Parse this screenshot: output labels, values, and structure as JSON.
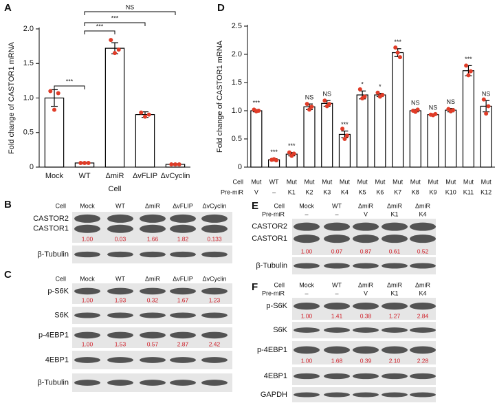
{
  "chart_data": [
    {
      "type": "bar",
      "panel_label": "A",
      "ylabel": "Fold change of CASTOR1 mRNA",
      "xlabel": "Cell",
      "categories": [
        "Mock",
        "WT",
        "ΔmiR",
        "ΔvFLIP",
        "ΔvCyclin"
      ],
      "values": [
        1.0,
        0.06,
        1.72,
        0.76,
        0.04
      ],
      "errors": [
        0.12,
        0.01,
        0.08,
        0.04,
        0.01
      ],
      "points": [
        [
          1.1,
          0.83,
          1.07
        ],
        [
          0.06,
          0.06,
          0.06
        ],
        [
          1.84,
          1.65,
          1.7
        ],
        [
          0.79,
          0.73,
          0.76
        ],
        [
          0.04,
          0.04,
          0.04
        ]
      ],
      "color": "#ffffff",
      "edge_color": "#000000",
      "point_color": "#e03c28",
      "ylim": [
        0,
        2
      ],
      "yticks": [
        0,
        0.5,
        {
          "value": 1,
          "label": "1.0"
        },
        1.5,
        {
          "value": 2,
          "label": "2.0"
        }
      ],
      "comparisons": [
        "***",
        "***",
        "***",
        "NS"
      ]
    },
    {
      "type": "bar",
      "panel_label": "D",
      "ylabel": "Fold change of CASTOR1 mRNA",
      "row_labels": {
        "cell": "Cell",
        "pre_mir": "Pre-miR"
      },
      "categories": [
        {
          "cell": "Mut",
          "pre_mir": "V"
        },
        {
          "cell": "WT",
          "pre_mir": "–"
        },
        {
          "cell": "Mut",
          "pre_mir": "K1"
        },
        {
          "cell": "Mut",
          "pre_mir": "K2"
        },
        {
          "cell": "Mut",
          "pre_mir": "K3"
        },
        {
          "cell": "Mut",
          "pre_mir": "K4"
        },
        {
          "cell": "Mut",
          "pre_mir": "K5"
        },
        {
          "cell": "Mut",
          "pre_mir": "K6"
        },
        {
          "cell": "Mut",
          "pre_mir": "K7"
        },
        {
          "cell": "Mut",
          "pre_mir": "K8"
        },
        {
          "cell": "Mut",
          "pre_mir": "K9"
        },
        {
          "cell": "Mut",
          "pre_mir": "K10"
        },
        {
          "cell": "Mut",
          "pre_mir": "K11"
        },
        {
          "cell": "Mut",
          "pre_mir": "K12"
        }
      ],
      "values": [
        1.0,
        0.13,
        0.23,
        1.07,
        1.13,
        0.58,
        1.28,
        1.28,
        2.03,
        1.0,
        0.93,
        1.01,
        1.71,
        1.08
      ],
      "errors": [
        0.02,
        0.02,
        0.03,
        0.05,
        0.05,
        0.06,
        0.07,
        0.03,
        0.07,
        0.02,
        0.01,
        0.03,
        0.09,
        0.1
      ],
      "points": [
        [
          1.02,
          0.99,
          1.0
        ],
        [
          0.13,
          0.14,
          0.12
        ],
        [
          0.26,
          0.2,
          0.24
        ],
        [
          1.12,
          1.02,
          1.07
        ],
        [
          1.18,
          1.08,
          1.12
        ],
        [
          0.68,
          0.5,
          0.56
        ],
        [
          1.38,
          1.22,
          1.25
        ],
        [
          1.32,
          1.25,
          1.28
        ],
        [
          2.12,
          2.03,
          1.95
        ],
        [
          1.0,
          0.98,
          1.02
        ],
        [
          0.93,
          0.92,
          0.94
        ],
        [
          1.03,
          0.99,
          1.01
        ],
        [
          1.8,
          1.63,
          1.7
        ],
        [
          1.2,
          0.95,
          1.08
        ]
      ],
      "significance": [
        "***",
        "***",
        "***",
        "NS",
        "NS",
        "***",
        "*",
        "*",
        "***",
        "NS",
        "NS",
        "NS",
        "***",
        "NS"
      ],
      "color": "#ffffff",
      "edge_color": "#000000",
      "point_color": "#e03c28",
      "ylim": [
        0,
        2.5
      ],
      "yticks": [
        0,
        0.5,
        {
          "value": 1,
          "label": "1.0"
        },
        1.5,
        {
          "value": 2,
          "label": "2.0"
        },
        2.5
      ]
    }
  ],
  "blots": [
    {
      "panel_label": "B",
      "header_rows": [
        {
          "name": "Cell",
          "lanes": [
            "Mock",
            "WT",
            "ΔmiR",
            "ΔvFLIP",
            "ΔvCyclin"
          ]
        }
      ],
      "rows": [
        {
          "names": [
            "CASTOR2",
            "CASTOR1"
          ],
          "quant": [
            "1.00",
            "0.03",
            "1.66",
            "1.82",
            "0.133"
          ]
        },
        {
          "names": [
            "β-Tubulin"
          ]
        }
      ]
    },
    {
      "panel_label": "C",
      "header_rows": [
        {
          "name": "Cell",
          "lanes": [
            "Mock",
            "WT",
            "ΔmiR",
            "ΔvFLIP",
            "ΔvCyclin"
          ]
        }
      ],
      "rows": [
        {
          "names": [
            "p-S6K"
          ],
          "quant": [
            "1.00",
            "1.93",
            "0.32",
            "1.67",
            "1.23"
          ]
        },
        {
          "names": [
            "S6K"
          ]
        },
        {
          "names": [
            "p-4EBP1"
          ],
          "quant": [
            "1.00",
            "1.53",
            "0.57",
            "2.87",
            "2.42"
          ]
        },
        {
          "names": [
            "4EBP1"
          ]
        },
        {
          "names": [
            "β-Tubulin"
          ]
        }
      ]
    },
    {
      "panel_label": "E",
      "header_rows": [
        {
          "name": "Cell",
          "lanes": [
            "Mock",
            "WT",
            "ΔmiR",
            "ΔmiR",
            "ΔmiR"
          ]
        },
        {
          "name": "Pre-miR",
          "lanes": [
            "–",
            "–",
            "V",
            "K1",
            "K4"
          ]
        }
      ],
      "rows": [
        {
          "names": [
            "CASTOR2",
            "CASTOR1"
          ],
          "quant": [
            "1.00",
            "0.07",
            "0.87",
            "0.61",
            "0.52"
          ]
        },
        {
          "names": [
            "β-Tubulin"
          ]
        }
      ]
    },
    {
      "panel_label": "F",
      "header_rows": [
        {
          "name": "Cell",
          "lanes": [
            "Mock",
            "WT",
            "ΔmiR",
            "ΔmiR",
            "ΔmiR"
          ]
        },
        {
          "name": "Pre-miR",
          "lanes": [
            "–",
            "–",
            "V",
            "K1",
            "K4"
          ]
        }
      ],
      "rows": [
        {
          "names": [
            "p-S6K"
          ],
          "quant": [
            "1.00",
            "1.41",
            "0.38",
            "1.27",
            "2.84"
          ]
        },
        {
          "names": [
            "S6K"
          ]
        },
        {
          "names": [
            "p-4EBP1"
          ],
          "quant": [
            "1.00",
            "1.68",
            "0.39",
            "2.10",
            "2.28"
          ]
        },
        {
          "names": [
            "4EBP1"
          ]
        },
        {
          "names": [
            "GAPDH"
          ]
        }
      ]
    }
  ]
}
